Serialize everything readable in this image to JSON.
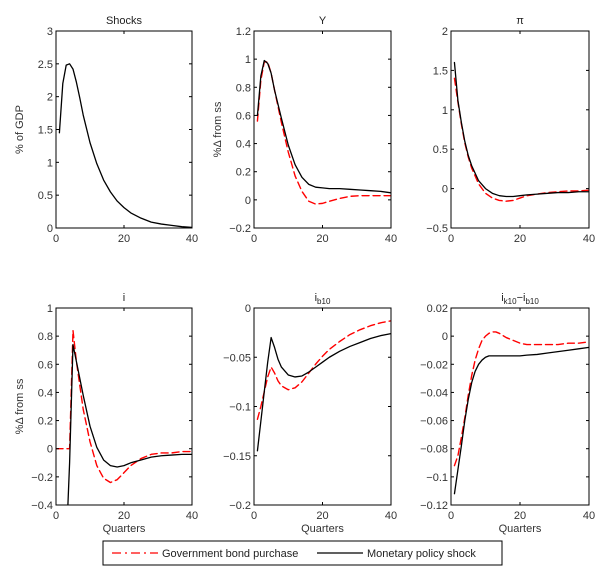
{
  "chart_data": [
    {
      "type": "line",
      "title": "Shocks",
      "title_main": "Shocks",
      "title_sub": "",
      "ylabel": "% of GDP",
      "xlabel": "",
      "xlim": [
        0,
        40
      ],
      "ylim": [
        0,
        3
      ],
      "xticks": [
        0,
        20,
        40
      ],
      "yticks": [
        0,
        0.5,
        1,
        1.5,
        2,
        2.5,
        3
      ],
      "ytick_labels": [
        "0",
        "0.5",
        "1",
        "1.5",
        "2",
        "2.5",
        "3"
      ],
      "series": [
        {
          "name": "Monetary policy shock",
          "style": "solid",
          "x": [
            1,
            2,
            3,
            4,
            5,
            6,
            7,
            8,
            10,
            12,
            14,
            16,
            18,
            20,
            22,
            25,
            28,
            31,
            34,
            37,
            40
          ],
          "y": [
            1.45,
            2.2,
            2.48,
            2.5,
            2.42,
            2.22,
            1.98,
            1.72,
            1.3,
            0.98,
            0.73,
            0.55,
            0.41,
            0.31,
            0.23,
            0.15,
            0.09,
            0.06,
            0.04,
            0.02,
            0.01
          ]
        }
      ]
    },
    {
      "type": "line",
      "title": "Y",
      "title_main": "Y",
      "title_sub": "",
      "ylabel": "%Δ from ss",
      "xlabel": "",
      "xlim": [
        0,
        40
      ],
      "ylim": [
        -0.2,
        1.2
      ],
      "xticks": [
        0,
        20,
        40
      ],
      "yticks": [
        -0.2,
        0,
        0.2,
        0.4,
        0.6,
        0.8,
        1,
        1.2
      ],
      "ytick_labels": [
        "−0.2",
        "0",
        "0.2",
        "0.4",
        "0.6",
        "0.8",
        "1",
        "1.2"
      ],
      "series": [
        {
          "name": "Government bond purchase",
          "style": "dashed",
          "x": [
            1,
            2,
            3,
            4,
            5,
            6,
            8,
            10,
            12,
            14,
            16,
            18,
            20,
            22,
            25,
            28,
            31,
            34,
            37,
            40
          ],
          "y": [
            0.56,
            0.85,
            0.98,
            0.98,
            0.9,
            0.78,
            0.55,
            0.34,
            0.17,
            0.06,
            -0.01,
            -0.03,
            -0.025,
            -0.01,
            0.01,
            0.025,
            0.03,
            0.03,
            0.03,
            0.03
          ]
        },
        {
          "name": "Monetary policy shock",
          "style": "solid",
          "x": [
            1,
            2,
            3,
            4,
            5,
            6,
            8,
            10,
            12,
            14,
            16,
            18,
            20,
            22,
            25,
            28,
            31,
            34,
            37,
            40
          ],
          "y": [
            0.6,
            0.88,
            0.99,
            0.97,
            0.9,
            0.78,
            0.58,
            0.39,
            0.25,
            0.16,
            0.11,
            0.09,
            0.085,
            0.08,
            0.08,
            0.075,
            0.07,
            0.065,
            0.06,
            0.05
          ]
        }
      ]
    },
    {
      "type": "line",
      "title": "π",
      "title_main": "π",
      "title_sub": "",
      "ylabel": "",
      "xlabel": "",
      "xlim": [
        0,
        40
      ],
      "ylim": [
        -0.5,
        2
      ],
      "xticks": [
        0,
        20,
        40
      ],
      "yticks": [
        -0.5,
        0,
        0.5,
        1,
        1.5,
        2
      ],
      "ytick_labels": [
        "−0.5",
        "0",
        "0.5",
        "1",
        "1.5",
        "2"
      ],
      "series": [
        {
          "name": "Government bond purchase",
          "style": "dashed",
          "x": [
            1,
            2,
            3,
            4,
            5,
            6,
            8,
            10,
            12,
            14,
            16,
            18,
            20,
            22,
            25,
            28,
            31,
            34,
            37,
            40
          ],
          "y": [
            1.4,
            1.1,
            0.82,
            0.58,
            0.4,
            0.26,
            0.06,
            -0.06,
            -0.12,
            -0.15,
            -0.16,
            -0.15,
            -0.12,
            -0.09,
            -0.07,
            -0.05,
            -0.04,
            -0.03,
            -0.03,
            -0.02
          ]
        },
        {
          "name": "Monetary policy shock",
          "style": "solid",
          "x": [
            1,
            2,
            3,
            4,
            5,
            6,
            8,
            10,
            12,
            14,
            16,
            18,
            20,
            22,
            25,
            28,
            31,
            34,
            37,
            40
          ],
          "y": [
            1.6,
            1.12,
            0.84,
            0.6,
            0.42,
            0.29,
            0.1,
            0.0,
            -0.06,
            -0.09,
            -0.1,
            -0.1,
            -0.09,
            -0.08,
            -0.07,
            -0.06,
            -0.05,
            -0.05,
            -0.04,
            -0.04
          ]
        }
      ]
    },
    {
      "type": "line",
      "title": "i",
      "title_main": "i",
      "title_sub": "",
      "ylabel": "%Δ from ss",
      "xlabel": "Quarters",
      "xlim": [
        0,
        40
      ],
      "ylim": [
        -0.4,
        1
      ],
      "xticks": [
        0,
        20,
        40
      ],
      "yticks": [
        -0.4,
        -0.2,
        0,
        0.2,
        0.4,
        0.6,
        0.8,
        1
      ],
      "ytick_labels": [
        "−0.4",
        "−0.2",
        "0",
        "0.2",
        "0.4",
        "0.6",
        "0.8",
        "1"
      ],
      "series": [
        {
          "name": "Government bond purchase",
          "style": "dashed",
          "x": [
            0,
            1,
            2,
            3,
            4,
            5,
            6,
            7,
            8,
            10,
            12,
            14,
            16,
            18,
            20,
            22,
            25,
            28,
            31,
            34,
            37,
            40
          ],
          "y": [
            0,
            0,
            0,
            0,
            0,
            0.84,
            0.62,
            0.45,
            0.28,
            0.05,
            -0.12,
            -0.21,
            -0.24,
            -0.22,
            -0.17,
            -0.12,
            -0.07,
            -0.04,
            -0.03,
            -0.03,
            -0.02,
            -0.02
          ]
        },
        {
          "name": "Monetary policy shock",
          "style": "solid",
          "x": [
            3.5,
            4,
            5,
            6,
            7,
            8,
            10,
            12,
            14,
            16,
            18,
            20,
            22,
            25,
            28,
            31,
            34,
            37,
            40
          ],
          "y": [
            -0.4,
            -0.1,
            0.74,
            0.62,
            0.5,
            0.38,
            0.16,
            0.01,
            -0.08,
            -0.12,
            -0.13,
            -0.12,
            -0.1,
            -0.08,
            -0.06,
            -0.05,
            -0.045,
            -0.04,
            -0.04
          ]
        }
      ]
    },
    {
      "type": "line",
      "title": "i_b10",
      "title_main": "i",
      "title_sub": "b10",
      "ylabel": "",
      "xlabel": "Quarters",
      "xlim": [
        0,
        40
      ],
      "ylim": [
        -0.2,
        0
      ],
      "xticks": [
        0,
        20,
        40
      ],
      "yticks": [
        -0.2,
        -0.15,
        -0.1,
        -0.05,
        0
      ],
      "ytick_labels": [
        "−0.2",
        "−0.15",
        "−0.1",
        "−0.05",
        "0"
      ],
      "series": [
        {
          "name": "Government bond purchase",
          "style": "dashed",
          "x": [
            1,
            2,
            3,
            4,
            5,
            6,
            7,
            8,
            10,
            12,
            14,
            16,
            18,
            20,
            22,
            25,
            28,
            31,
            34,
            37,
            40
          ],
          "y": [
            -0.113,
            -0.1,
            -0.085,
            -0.07,
            -0.06,
            -0.066,
            -0.074,
            -0.079,
            -0.083,
            -0.081,
            -0.075,
            -0.066,
            -0.057,
            -0.049,
            -0.042,
            -0.034,
            -0.027,
            -0.022,
            -0.018,
            -0.015,
            -0.013
          ]
        },
        {
          "name": "Monetary policy shock",
          "style": "solid",
          "x": [
            1,
            2,
            3,
            4,
            5,
            6,
            7,
            8,
            10,
            12,
            14,
            16,
            18,
            20,
            22,
            25,
            28,
            31,
            34,
            37,
            40
          ],
          "y": [
            -0.145,
            -0.115,
            -0.085,
            -0.055,
            -0.03,
            -0.04,
            -0.052,
            -0.06,
            -0.068,
            -0.07,
            -0.069,
            -0.065,
            -0.06,
            -0.055,
            -0.05,
            -0.044,
            -0.039,
            -0.035,
            -0.031,
            -0.028,
            -0.026
          ]
        }
      ]
    },
    {
      "type": "line",
      "title": "i_k10 - i_b10",
      "title_main": "i",
      "title_sub": "k10",
      "title_main2": "−i",
      "title_sub2": "b10",
      "ylabel": "",
      "xlabel": "Quarters",
      "xlim": [
        0,
        40
      ],
      "ylim": [
        -0.12,
        0.02
      ],
      "xticks": [
        0,
        20,
        40
      ],
      "yticks": [
        -0.12,
        -0.1,
        -0.08,
        -0.06,
        -0.04,
        -0.02,
        0,
        0.02
      ],
      "ytick_labels": [
        "−0.12",
        "−0.1",
        "−0.08",
        "−0.06",
        "−0.04",
        "−0.02",
        "0",
        "0.02"
      ],
      "series": [
        {
          "name": "Government bond purchase",
          "style": "dashed",
          "x": [
            1,
            2,
            3,
            4,
            5,
            6,
            7,
            8,
            9,
            10,
            11,
            12,
            13,
            14,
            16,
            18,
            20,
            22,
            25,
            28,
            31,
            34,
            37,
            40
          ],
          "y": [
            -0.092,
            -0.085,
            -0.072,
            -0.058,
            -0.042,
            -0.028,
            -0.017,
            -0.009,
            -0.003,
            0.0,
            0.002,
            0.003,
            0.003,
            0.002,
            -0.001,
            -0.003,
            -0.005,
            -0.006,
            -0.006,
            -0.006,
            -0.006,
            -0.005,
            -0.005,
            -0.004
          ]
        },
        {
          "name": "Monetary policy shock",
          "style": "solid",
          "x": [
            1,
            2,
            3,
            4,
            5,
            6,
            7,
            8,
            9,
            10,
            11,
            12,
            14,
            16,
            18,
            20,
            22,
            25,
            28,
            31,
            34,
            37,
            40
          ],
          "y": [
            -0.112,
            -0.095,
            -0.078,
            -0.06,
            -0.045,
            -0.033,
            -0.025,
            -0.02,
            -0.017,
            -0.015,
            -0.014,
            -0.014,
            -0.014,
            -0.014,
            -0.014,
            -0.014,
            -0.0135,
            -0.013,
            -0.012,
            -0.011,
            -0.01,
            -0.009,
            -0.008
          ]
        }
      ]
    }
  ],
  "legend": {
    "placement": "bottom-center",
    "entries": [
      {
        "label": "Government bond purchase",
        "color": "#ff0000",
        "style": "dashed"
      },
      {
        "label": "Monetary policy shock",
        "color": "#000000",
        "style": "solid"
      }
    ]
  },
  "colors": {
    "Government bond purchase": "#ff0000",
    "Monetary policy shock": "#000000"
  }
}
